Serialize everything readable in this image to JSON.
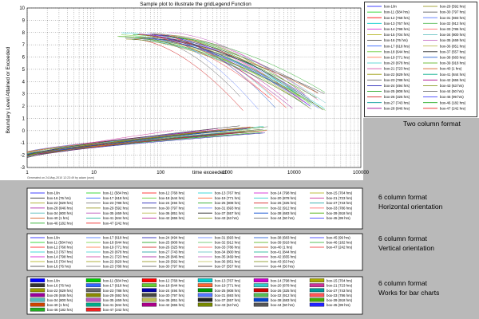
{
  "figure": {
    "title": "Sample plot to illustrate the gridLegend Function",
    "generated": "Generated on 24-May-2010 12:23:49 by adam (osm)"
  },
  "chart_data": {
    "type": "line",
    "title": "Sample plot to illustrate the gridLegend Function",
    "xlabel": "time exceeded",
    "ylabel": "Boundary Level Attained or Exceeded",
    "xscale": "log",
    "xlim": [
      1,
      100000
    ],
    "ylim": [
      -3,
      10
    ],
    "grid": true,
    "x_ticks": [
      "1",
      "10",
      "100",
      "1000",
      "10000",
      "100000"
    ],
    "y_ticks": [
      "-3",
      "-2",
      "-1",
      "0",
      "1",
      "2",
      "3",
      "4",
      "5",
      "6",
      "7",
      "8",
      "9",
      "10"
    ],
    "legend_placement": "right",
    "series": [
      {
        "name": "box-10n",
        "color": "#0000ff"
      },
      {
        "name": "box-11 (584 hrs)",
        "color": "#00cc00"
      },
      {
        "name": "box-12 (768 hrs)",
        "color": "#ff0000"
      },
      {
        "name": "box-13 (767 hrs)",
        "color": "#00cccc"
      },
      {
        "name": "box-14 (798 hrs)",
        "color": "#cc00cc"
      },
      {
        "name": "box-15 (704 hrs)",
        "color": "#aaaa00"
      },
      {
        "name": "box-16 (76 hrs)",
        "color": "#333333"
      },
      {
        "name": "box-17 (618 hrs)",
        "color": "#3366ff"
      },
      {
        "name": "box-18 (644 hrs)",
        "color": "#66cc33"
      },
      {
        "name": "box-19 (771 hrs)",
        "color": "#ff6633"
      },
      {
        "name": "box-20 (878 hrs)",
        "color": "#33cccc"
      },
      {
        "name": "box-21 (723 hrs)",
        "color": "#cc3399"
      },
      {
        "name": "box-22 (829 hrs)",
        "color": "#999900"
      },
      {
        "name": "box-23 (788 hrs)",
        "color": "#666666"
      },
      {
        "name": "box-24 (494 hrs)",
        "color": "#0000aa"
      },
      {
        "name": "box-25 (808 hrs)",
        "color": "#009900"
      },
      {
        "name": "box-26 (325 hrs)",
        "color": "#cc0000"
      },
      {
        "name": "box-27 (743 hrs)",
        "color": "#009999"
      },
      {
        "name": "box-28 (846 hrs)",
        "color": "#990099"
      },
      {
        "name": "box-29 (592 hrs)",
        "color": "#888800"
      },
      {
        "name": "box-30 (797 hrs)",
        "color": "#444444"
      },
      {
        "name": "box-31 (693 hrs)",
        "color": "#5577ff"
      },
      {
        "name": "box-32 (912 hrs)",
        "color": "#55bb55"
      },
      {
        "name": "box-33 (786 hrs)",
        "color": "#ff5555"
      },
      {
        "name": "box-34 (800 hrs)",
        "color": "#55bbbb"
      },
      {
        "name": "box-35 (469 hrs)",
        "color": "#bb55bb"
      },
      {
        "name": "box-36 (851 hrs)",
        "color": "#bbbb55"
      },
      {
        "name": "box-37 (557 hrs)",
        "color": "#222222"
      },
      {
        "name": "box-38 (683 hrs)",
        "color": "#0044cc"
      },
      {
        "name": "box-39 (918 hrs)",
        "color": "#44aa00"
      },
      {
        "name": "box-40 (1 hrs)",
        "color": "#cc4400"
      },
      {
        "name": "box-41 (844 hrs)",
        "color": "#00aa88"
      },
      {
        "name": "box-42 (655 hrs)",
        "color": "#aa0088"
      },
      {
        "name": "box-43 (63 hrs)",
        "color": "#778800"
      },
      {
        "name": "box-44 (50 hrs)",
        "color": "#555555"
      },
      {
        "name": "box-45 (99 hrs)",
        "color": "#2222ff"
      },
      {
        "name": "box-46 (182 hrs)",
        "color": "#22aa22"
      },
      {
        "name": "box-47 (242 hrs)",
        "color": "#ee2222"
      }
    ]
  },
  "legends": {
    "two_column_items": [
      "box-10n",
      "box-29 (592 hrs)",
      "box-11 (584 hrs)",
      "box-30 (797 hrs)",
      "box-12 (768 hrs)",
      "box-31 (693 hrs)",
      "box-13 (767 hrs)",
      "box-32 (912 hrs)",
      "box-14 (798 hrs)",
      "box-33 (786 hrs)",
      "box-15 (704 hrs)",
      "box-34 (800 hrs)",
      "box-16 (76 hrs)",
      "box-35 (469 hrs)",
      "box-17 (618 hrs)",
      "box-36 (851 hrs)",
      "box-18 (644 hrs)",
      "box-37 (557 hrs)",
      "box-19 (771 hrs)",
      "box-38 (683 hrs)",
      "box-20 (878 hrs)",
      "box-39 (918 hrs)",
      "box-21 (723 hrs)",
      "box-40 (1 hrs)",
      "box-22 (829 hrs)",
      "box-41 (844 hrs)",
      "box-23 (788 hrs)",
      "box-42 (655 hrs)",
      "box-24 (494 hrs)",
      "box-43 (63 hrs)",
      "box-25 (808 hrs)",
      "box-44 (50 hrs)",
      "box-26 (325 hrs)",
      "box-45 (99 hrs)",
      "box-27 (743 hrs)",
      "box-46 (182 hrs)",
      "box-28 (846 hrs)",
      "box-47 (242 hrs)"
    ],
    "horizontal_items": [
      "box-10n",
      "box-11 (584 hrs)",
      "box-12 (768 hrs)",
      "box-13 (767 hrs)",
      "box-14 (798 hrs)",
      "box-15 (704 hrs)",
      "box-16 (76 hrs)",
      "box-17 (618 hrs)",
      "box-18 (644 hrs)",
      "box-19 (771 hrs)",
      "box-20 (878 hrs)",
      "box-21 (723 hrs)",
      "box-22 (829 hrs)",
      "box-23 (788 hrs)",
      "box-24 (494 hrs)",
      "box-25 (808 hrs)",
      "box-26 (325 hrs)",
      "box-27 (743 hrs)",
      "box-28 (846 hrs)",
      "box-29 (592 hrs)",
      "box-30 (797 hrs)",
      "box-31 (693 hrs)",
      "box-32 (912 hrs)",
      "box-33 (786 hrs)",
      "box-34 (800 hrs)",
      "box-35 (469 hrs)",
      "box-36 (851 hrs)",
      "box-37 (557 hrs)",
      "box-38 (683 hrs)",
      "box-39 (918 hrs)",
      "box-40 (1 hrs)",
      "box-41 (844 hrs)",
      "box-42 (655 hrs)",
      "box-43 (63 hrs)",
      "box-44 (50 hrs)",
      "box-45 (99 hrs)",
      "box-46 (182 hrs)",
      "box-47 (242 hrs)"
    ],
    "vertical_items": [
      "box-10n",
      "box-17 (618 hrs)",
      "box-24 (494 hrs)",
      "box-31 (693 hrs)",
      "box-38 (683 hrs)",
      "box-45 (99 hrs)",
      "box-11 (584 hrs)",
      "box-18 (644 hrs)",
      "box-25 (808 hrs)",
      "box-32 (912 hrs)",
      "box-39 (918 hrs)",
      "box-46 (182 hrs)",
      "box-12 (768 hrs)",
      "box-19 (771 hrs)",
      "box-26 (325 hrs)",
      "box-33 (786 hrs)",
      "box-40 (1 hrs)",
      "box-47 (242 hrs)",
      "box-13 (767 hrs)",
      "box-20 (878 hrs)",
      "box-27 (743 hrs)",
      "box-34 (800 hrs)",
      "box-41 (844 hrs)",
      "",
      "box-14 (798 hrs)",
      "box-21 (723 hrs)",
      "box-28 (846 hrs)",
      "box-35 (469 hrs)",
      "box-42 (655 hrs)",
      "",
      "box-15 (704 hrs)",
      "box-22 (829 hrs)",
      "box-29 (592 hrs)",
      "box-36 (851 hrs)",
      "box-43 (63 hrs)",
      "",
      "box-16 (76 hrs)",
      "box-23 (788 hrs)",
      "box-30 (797 hrs)",
      "box-37 (557 hrs)",
      "box-44 (50 hrs)",
      ""
    ]
  },
  "notes": {
    "two_column": "Two column format",
    "horizontal": [
      "6 column format",
      "Horizontal orientation"
    ],
    "vertical": [
      "6 column format",
      "Vertical orientation"
    ],
    "bar": [
      "6 column format",
      "Works for bar charts"
    ]
  }
}
